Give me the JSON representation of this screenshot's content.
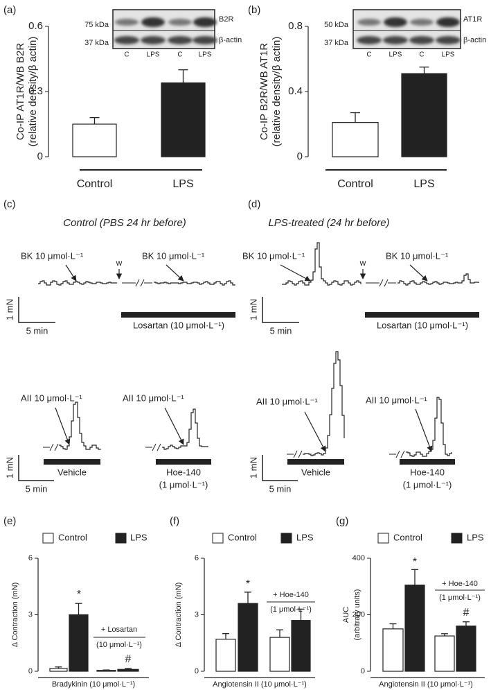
{
  "chart_data": [
    {
      "type": "bar",
      "label": "(a)",
      "ylabel": [
        "Co-IP AT1R/WB B2R",
        "(relative density/β actin)"
      ],
      "categories": [
        "Control",
        "LPS"
      ],
      "values": [
        0.15,
        0.34
      ],
      "errors": [
        0.03,
        0.06
      ],
      "colors": [
        "#ffffff",
        "#222222"
      ],
      "ylim": [
        0,
        0.6
      ],
      "yticks": [
        0,
        0.3,
        0.6
      ],
      "blot": {
        "bands": [
          "75 kDa",
          "37 kDa"
        ],
        "proteins": [
          "B2R",
          "β-actin"
        ],
        "lanes": [
          "C",
          "LPS",
          "C",
          "LPS"
        ]
      }
    },
    {
      "type": "bar",
      "label": "(b)",
      "ylabel": [
        "Co-IP B2R/WB AT1R",
        "(relative density/β actin)"
      ],
      "categories": [
        "Control",
        "LPS"
      ],
      "values": [
        0.21,
        0.51
      ],
      "errors": [
        0.06,
        0.04
      ],
      "colors": [
        "#ffffff",
        "#222222"
      ],
      "ylim": [
        0,
        0.8
      ],
      "yticks": [
        0,
        0.4,
        0.8
      ],
      "blot": {
        "bands": [
          "50 kDa",
          "37 kDa"
        ],
        "proteins": [
          "AT1R",
          "β-actin"
        ],
        "lanes": [
          "C",
          "LPS",
          "C",
          "LPS"
        ]
      }
    },
    {
      "type": "grouped_bar",
      "label": "(e)",
      "ylabel": [
        "Δ Contraction (mN)"
      ],
      "xlabel": "Bradykinin (10 μmol·L⁻¹)",
      "categories": [
        null,
        null
      ],
      "series": [
        {
          "name": "Control",
          "color": "#ffffff",
          "values": [
            0.15,
            0.05
          ],
          "errors": [
            0.08,
            0.02
          ]
        },
        {
          "name": "LPS",
          "color": "#222222",
          "values": [
            3.0,
            0.1
          ],
          "errors": [
            0.6,
            0.05
          ]
        }
      ],
      "ylim": [
        0,
        6
      ],
      "yticks": [
        0,
        3,
        6
      ],
      "annotations": [
        "*",
        "+ Losartan",
        "(10 μmol·L⁻¹)",
        "#"
      ]
    },
    {
      "type": "grouped_bar",
      "label": "(f)",
      "ylabel": [
        "Δ Contraction (mN)"
      ],
      "xlabel": "Angiotensin II (10 μmol·L⁻¹)",
      "categories": [
        null,
        null
      ],
      "series": [
        {
          "name": "Control",
          "color": "#ffffff",
          "values": [
            1.7,
            1.8
          ],
          "errors": [
            0.3,
            0.4
          ]
        },
        {
          "name": "LPS",
          "color": "#222222",
          "values": [
            3.6,
            2.7
          ],
          "errors": [
            0.6,
            0.6
          ]
        }
      ],
      "ylim": [
        0,
        6
      ],
      "yticks": [
        0,
        3,
        6
      ],
      "annotations": [
        "*",
        "+ Hoe-140",
        "(1 μmol·L⁻¹)"
      ]
    },
    {
      "type": "grouped_bar",
      "label": "(g)",
      "ylabel": [
        "AUC",
        "(arbitrary units)"
      ],
      "xlabel": "Angiotensin II (10 μmol·L⁻¹)",
      "categories": [
        null,
        null
      ],
      "series": [
        {
          "name": "Control",
          "color": "#ffffff",
          "values": [
            150,
            125
          ],
          "errors": [
            18,
            8
          ]
        },
        {
          "name": "LPS",
          "color": "#222222",
          "values": [
            305,
            160
          ],
          "errors": [
            55,
            15
          ]
        }
      ],
      "ylim": [
        0,
        400
      ],
      "yticks": [
        0,
        200,
        400
      ],
      "annotations": [
        "*",
        "+ Hoe-140",
        "(1 μmol·L⁻¹)",
        "#"
      ]
    }
  ],
  "traces": [
    {
      "label": "(c)",
      "title": "Control (PBS 24 hr before)",
      "top": {
        "stimulus_1": "BK 10 μmol·L⁻¹",
        "washout": "w",
        "stimulus_2": "BK 10 μmol·L⁻¹",
        "treatment": "Losartan (10 μmol·L⁻¹)",
        "scale_force": "1 mN",
        "scale_time": "5 min"
      },
      "bottom": {
        "stimulus_1": "AII 10 μmol·L⁻¹",
        "treatment_1": "Vehicle",
        "stimulus_2": "AII 10 μmol·L⁻¹",
        "treatment_2": [
          "Hoe-140",
          "(1 μmol·L⁻¹)"
        ],
        "scale_force": "1 mN",
        "scale_time": "5 min"
      }
    },
    {
      "label": "(d)",
      "title": "LPS-treated (24 hr before)",
      "top": {
        "stimulus_1": "BK 10 μmol·L⁻¹",
        "washout": "w",
        "stimulus_2": "BK 10 μmol·L⁻¹",
        "treatment": "Losartan (10 μmol·L⁻¹)",
        "scale_force": "1 mN",
        "scale_time": "5 min"
      },
      "bottom": {
        "stimulus_1": "AII 10 μmol·L⁻¹",
        "treatment_1": "Vehicle",
        "stimulus_2": "AII 10 μmol·L⁻¹",
        "treatment_2": [
          "Hoe-140",
          "(1 μmol·L⁻¹)"
        ],
        "scale_force": "1 mN",
        "scale_time": "5 min"
      }
    }
  ]
}
